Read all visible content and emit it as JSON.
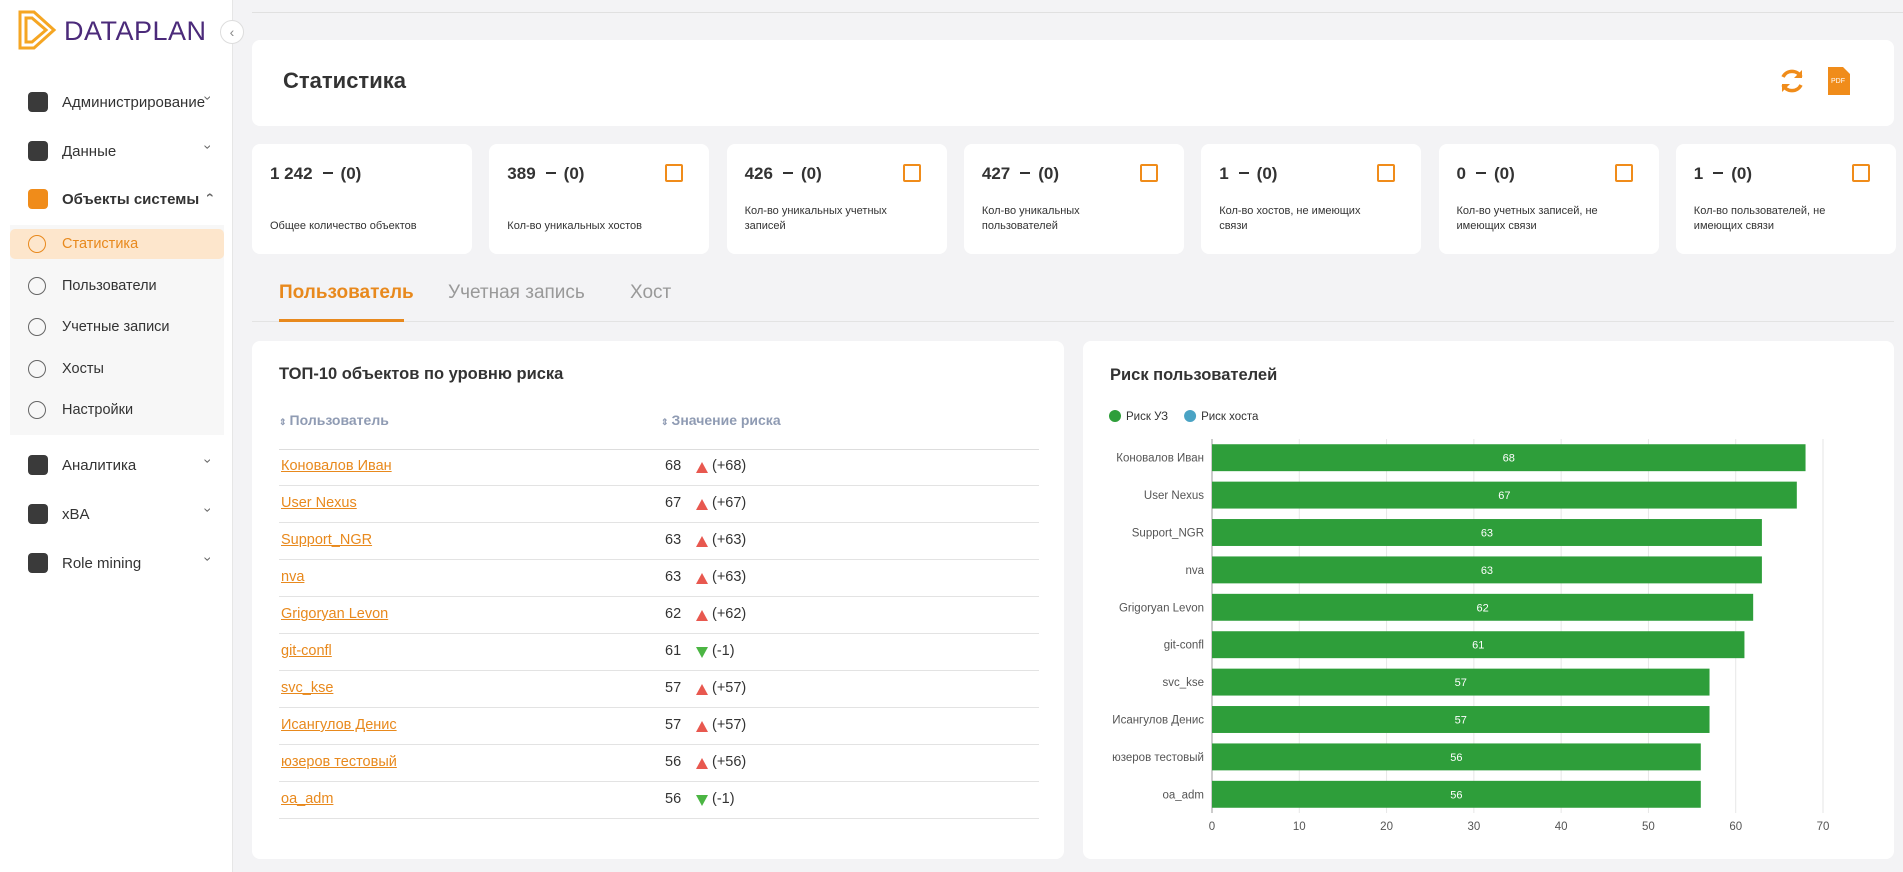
{
  "sidebar": {
    "logo": "DATAPLAN",
    "items": [
      {
        "label": "Администрирование",
        "expandable": true
      },
      {
        "label": "Данные",
        "expandable": true
      },
      {
        "label": "Объекты системы",
        "expandable": true,
        "open": true,
        "children": [
          "Статистика",
          "Пользователи",
          "Учетные записи",
          "Хосты",
          "Настройки"
        ],
        "active_child": 0
      },
      {
        "label": "Аналитика",
        "expandable": true
      },
      {
        "label": "xBA",
        "expandable": true
      },
      {
        "label": "Role mining",
        "expandable": true
      }
    ]
  },
  "header": {
    "title": "Статистика"
  },
  "cards": [
    {
      "value": "1 242",
      "delta": "(0)",
      "label": "Общее количество объектов",
      "link": false
    },
    {
      "value": "389",
      "delta": "(0)",
      "label": "Кол-во уникальных хостов",
      "link": true
    },
    {
      "value": "426",
      "delta": "(0)",
      "label": "Кол-во уникальных учетных записей",
      "link": true
    },
    {
      "value": "427",
      "delta": "(0)",
      "label": "Кол-во уникальных пользователей",
      "link": true
    },
    {
      "value": "1",
      "delta": "(0)",
      "label": "Кол-во хостов, не имеющих связи",
      "link": true
    },
    {
      "value": "0",
      "delta": "(0)",
      "label": "Кол-во учетных записей, не имеющих связи",
      "link": true
    },
    {
      "value": "1",
      "delta": "(0)",
      "label": "Кол-во пользователей, не имеющих связи",
      "link": true
    }
  ],
  "tabs": {
    "items": [
      "Пользователь",
      "Учетная запись",
      "Хост"
    ],
    "active": 0
  },
  "table": {
    "title": "ТОП-10 объектов по уровню риска",
    "columns": [
      "Пользователь",
      "Значение риска"
    ],
    "rows": [
      [
        "Коновалов Иван",
        68,
        "(+68)",
        "up"
      ],
      [
        "User Nexus",
        67,
        "(+67)",
        "up"
      ],
      [
        "Support_NGR",
        63,
        "(+63)",
        "up"
      ],
      [
        "nva",
        63,
        "(+63)",
        "up"
      ],
      [
        "Grigoryan Levon",
        62,
        "(+62)",
        "up"
      ],
      [
        "git-confl",
        61,
        "(-1)",
        "down"
      ],
      [
        "svc_kse",
        57,
        "(+57)",
        "up"
      ],
      [
        "Исангулов Денис",
        57,
        "(+57)",
        "up"
      ],
      [
        "юзеров тестовый",
        56,
        "(+56)",
        "up"
      ],
      [
        "oa_adm",
        56,
        "(-1)",
        "down"
      ]
    ]
  },
  "chart_data": {
    "type": "hbar",
    "title": "Риск пользователей",
    "categories": [
      "Коновалов Иван",
      "User Nexus",
      "Support_NGR",
      "nva",
      "Grigoryan Levon",
      "git-confl",
      "svc_kse",
      "Исангулов Денис",
      "юзеров тестовый",
      "oa_adm"
    ],
    "series": [
      {
        "name": "Риск УЗ",
        "color": "#2e9e3a",
        "values": [
          68,
          67,
          63,
          63,
          62,
          61,
          57,
          57,
          56,
          56
        ]
      },
      {
        "name": "Риск хоста",
        "color": "#4aa3c4",
        "values": [
          null,
          null,
          null,
          null,
          null,
          null,
          null,
          null,
          null,
          null
        ]
      }
    ],
    "xlim": [
      0,
      70
    ],
    "xticks": [
      0,
      10,
      20,
      30,
      40,
      50,
      60,
      70
    ],
    "grid": true
  }
}
